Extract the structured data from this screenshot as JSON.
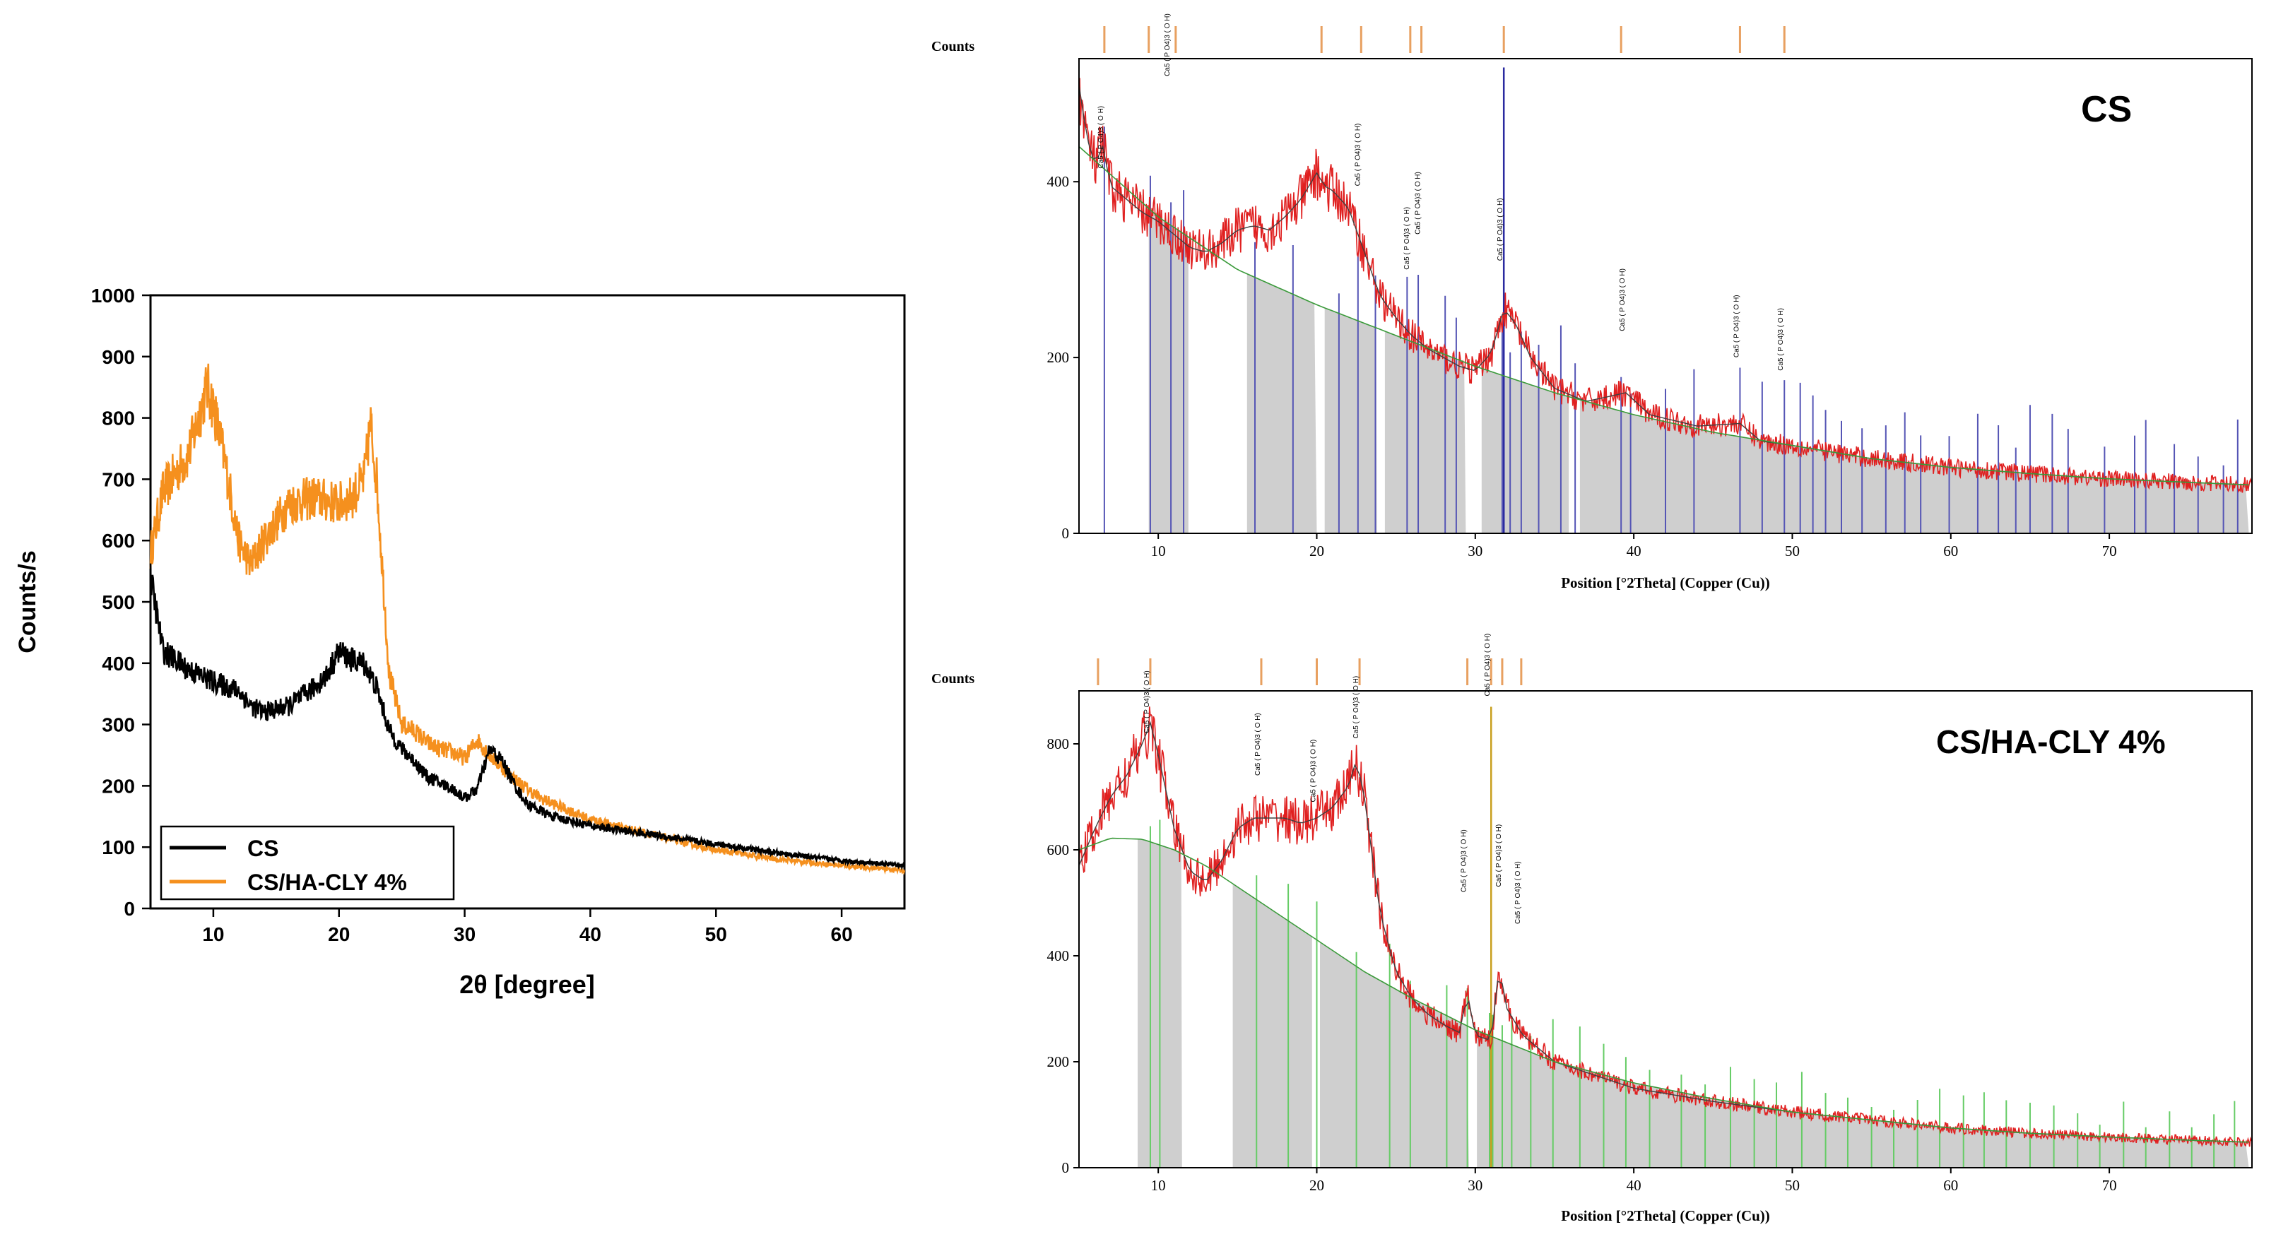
{
  "chart_data": [
    {
      "id": "left",
      "type": "line",
      "title": "",
      "xlabel": "2θ [degree]",
      "ylabel": "Counts/s",
      "xlim": [
        5,
        65
      ],
      "ylim": [
        0,
        1000
      ],
      "xticks": [
        10,
        20,
        30,
        40,
        50,
        60
      ],
      "yticks": [
        0,
        100,
        200,
        300,
        400,
        500,
        600,
        700,
        800,
        900,
        1000
      ],
      "legend": "bottom-left",
      "series": [
        {
          "name": "CS",
          "color": "#000000",
          "x": [
            5,
            6,
            8,
            10,
            12,
            13,
            14,
            16,
            18,
            19,
            20,
            21,
            22,
            23,
            24,
            25,
            26,
            27,
            28,
            29,
            30,
            31,
            32,
            33,
            34,
            35,
            37,
            40,
            45,
            50,
            55,
            60,
            65
          ],
          "y": [
            540,
            420,
            390,
            370,
            355,
            330,
            320,
            330,
            360,
            380,
            420,
            405,
            400,
            360,
            290,
            260,
            240,
            215,
            205,
            195,
            180,
            195,
            260,
            240,
            200,
            170,
            150,
            135,
            120,
            105,
            90,
            78,
            70
          ]
        },
        {
          "name": "CS/HA-CLY 4%",
          "color": "#f5901e",
          "x": [
            5,
            6,
            8,
            9.5,
            10,
            11,
            12,
            13,
            14,
            16,
            18,
            20,
            21,
            22,
            22.5,
            23,
            24,
            25,
            26,
            27,
            28,
            29,
            30,
            31,
            32,
            34,
            36,
            40,
            45,
            50,
            55,
            60,
            65
          ],
          "y": [
            580,
            680,
            740,
            850,
            820,
            720,
            600,
            560,
            600,
            660,
            670,
            660,
            670,
            700,
            790,
            700,
            380,
            300,
            290,
            270,
            260,
            255,
            245,
            275,
            250,
            210,
            180,
            145,
            120,
            95,
            80,
            70,
            62
          ]
        }
      ]
    },
    {
      "id": "top-right",
      "type": "line",
      "title": "CS",
      "xlabel": "Position [°2Theta] (Copper (Cu))",
      "ylabel": "Counts",
      "xlim": [
        5,
        79
      ],
      "ylim": [
        0,
        540
      ],
      "xticks": [
        10,
        20,
        30,
        40,
        50,
        60,
        70
      ],
      "yticks": [
        0,
        200,
        400
      ],
      "observed": {
        "x": [
          5,
          5.5,
          6,
          6.5,
          7,
          8,
          9,
          10,
          11,
          12,
          13,
          14,
          15,
          16,
          17,
          18,
          19,
          20,
          20.5,
          21,
          22,
          23,
          24,
          25,
          26,
          27,
          28,
          29,
          30,
          31,
          31.8,
          32.5,
          33.5,
          35,
          37,
          39.5,
          41,
          44,
          46.7,
          48,
          50,
          55,
          60,
          65,
          70,
          75,
          79
        ],
        "y": [
          510,
          450,
          420,
          440,
          395,
          380,
          365,
          355,
          340,
          325,
          320,
          330,
          345,
          350,
          345,
          360,
          380,
          410,
          395,
          390,
          370,
          320,
          270,
          245,
          225,
          210,
          200,
          190,
          185,
          205,
          255,
          240,
          200,
          165,
          150,
          160,
          135,
          122,
          125,
          105,
          100,
          85,
          75,
          68,
          62,
          58,
          55
        ]
      },
      "background": {
        "x": [
          5,
          10,
          15,
          20,
          25,
          30,
          35,
          40,
          45,
          50,
          55,
          60,
          65,
          70,
          75,
          79
        ],
        "y": [
          440,
          360,
          300,
          260,
          225,
          190,
          160,
          135,
          115,
          100,
          85,
          75,
          68,
          62,
          58,
          55
        ]
      },
      "reference_lines": [
        6.6,
        9.5,
        10.8,
        11.6,
        16.1,
        18.5,
        21.4,
        22.6,
        23.7,
        25.7,
        26.4,
        28.1,
        28.8,
        31.7,
        32.2,
        32.9,
        34.0,
        35.4,
        36.3,
        39.2,
        39.8,
        42.0,
        43.8,
        46.7,
        48.1,
        49.5,
        50.5,
        51.3,
        52.1,
        53.1,
        54.4,
        55.9,
        57.1,
        58.1,
        59.9,
        61.7,
        63.0,
        64.1,
        65.0,
        66.4,
        67.4,
        69.7,
        71.6,
        72.3,
        74.1,
        75.6,
        77.2,
        78.1
      ],
      "tall_line": {
        "x": 31.8,
        "y": 530
      },
      "top_markers": [
        6.6,
        9.4,
        11.1,
        20.3,
        22.8,
        25.9,
        26.6,
        31.8,
        39.2,
        46.7,
        49.5
      ],
      "gray_bands": [
        [
          9.4,
          11.9
        ],
        [
          15.6,
          20.0
        ],
        [
          20.5,
          23.8
        ],
        [
          24.3,
          29.4
        ],
        [
          30.4,
          35.9
        ],
        [
          36.6,
          78.8
        ]
      ],
      "peak_labels": [
        {
          "x": 6.6,
          "y": 415,
          "text": "Ca5 ( P O4)3 ( O H)"
        },
        {
          "x": 10.8,
          "y": 520,
          "text": "Ca5 ( P O4)3 ( O H)"
        },
        {
          "x": 22.8,
          "y": 395,
          "text": "Ca5 ( P O4)3 ( O H)"
        },
        {
          "x": 25.9,
          "y": 300,
          "text": "Ca5 ( P O4)3 ( O H)"
        },
        {
          "x": 26.6,
          "y": 340,
          "text": "Ca5 ( P O4)3 ( O H)"
        },
        {
          "x": 31.8,
          "y": 310,
          "text": "Ca5 ( P O4)3 ( O H)"
        },
        {
          "x": 39.5,
          "y": 230,
          "text": "Ca5 ( P O4)3 ( O H)"
        },
        {
          "x": 46.7,
          "y": 200,
          "text": "Ca5 ( P O4)3 ( O H)"
        },
        {
          "x": 49.5,
          "y": 185,
          "text": "Ca5 ( P O4)3 ( O H)"
        }
      ]
    },
    {
      "id": "bottom-right",
      "type": "line",
      "title": "CS/HA-CLY 4%",
      "xlabel": "Position [°2Theta] (Copper (Cu))",
      "ylabel": "Counts",
      "xlim": [
        5,
        79
      ],
      "ylim": [
        0,
        900
      ],
      "xticks": [
        10,
        20,
        30,
        40,
        50,
        60,
        70
      ],
      "yticks": [
        0,
        200,
        400,
        600,
        800
      ],
      "observed": {
        "x": [
          5,
          6,
          7,
          8,
          9,
          9.5,
          10,
          11,
          12,
          13,
          14,
          15,
          16,
          17,
          18,
          19,
          20,
          21,
          22,
          22.5,
          23,
          24,
          25,
          26,
          27,
          28,
          29,
          29.5,
          30,
          31,
          31.5,
          32,
          33,
          35,
          38,
          40,
          45,
          50,
          55,
          60,
          65,
          70,
          75,
          79
        ],
        "y": [
          570,
          640,
          700,
          740,
          800,
          840,
          780,
          640,
          560,
          540,
          580,
          640,
          660,
          660,
          660,
          650,
          660,
          680,
          720,
          770,
          700,
          480,
          370,
          320,
          290,
          270,
          255,
          330,
          250,
          240,
          380,
          300,
          250,
          200,
          170,
          150,
          125,
          105,
          90,
          75,
          65,
          58,
          52,
          48
        ]
      },
      "background": {
        "x": [
          5,
          7,
          9,
          11,
          13,
          15,
          17,
          20,
          23,
          26,
          30,
          35,
          40,
          45,
          50,
          55,
          60,
          65,
          70,
          75,
          79
        ],
        "y": [
          600,
          622,
          620,
          600,
          570,
          530,
          490,
          430,
          370,
          320,
          260,
          200,
          160,
          130,
          105,
          90,
          75,
          65,
          58,
          52,
          48
        ]
      },
      "reference_lines": [
        9.5,
        10.1,
        16.2,
        18.2,
        20.0,
        22.5,
        24.6,
        25.9,
        28.2,
        29.5,
        30.9,
        31.1,
        31.7,
        32.3,
        33.5,
        34.9,
        36.6,
        38.1,
        39.5,
        41.0,
        43.0,
        44.5,
        46.1,
        47.6,
        49.0,
        50.6,
        52.1,
        53.5,
        55.0,
        56.4,
        57.9,
        59.3,
        60.8,
        62.1,
        63.5,
        65.0,
        66.5,
        68.0,
        69.4,
        70.9,
        72.3,
        73.8,
        75.2,
        76.6,
        77.9
      ],
      "tall_line": {
        "x": 31.0,
        "y": 870
      },
      "top_markers": [
        6.2,
        9.5,
        16.5,
        20.0,
        22.7,
        29.5,
        31.0,
        31.7,
        32.9
      ],
      "gray_bands": [
        [
          8.7,
          11.5
        ],
        [
          14.7,
          19.7
        ],
        [
          20.2,
          29.6
        ],
        [
          30.1,
          78.8
        ]
      ],
      "peak_labels": [
        {
          "x": 9.5,
          "y": 820,
          "text": "Ca5 ( P O4)3 ( O H)"
        },
        {
          "x": 16.5,
          "y": 740,
          "text": "Ca5 ( P O4)3 ( O H)"
        },
        {
          "x": 20.0,
          "y": 690,
          "text": "Ca5 ( P O4)3 ( O H)"
        },
        {
          "x": 22.7,
          "y": 810,
          "text": "Ca5 ( P O4)3 ( O H)"
        },
        {
          "x": 29.5,
          "y": 520,
          "text": "Ca5 ( P O4)3 ( O H)"
        },
        {
          "x": 31.0,
          "y": 890,
          "text": "Ca5 ( P O4)3 ( O H)"
        },
        {
          "x": 31.7,
          "y": 530,
          "text": "Ca5 ( P O4)3 ( O H)"
        },
        {
          "x": 32.9,
          "y": 460,
          "text": "Ca5 ( P O4)3 ( O H)"
        }
      ]
    }
  ]
}
